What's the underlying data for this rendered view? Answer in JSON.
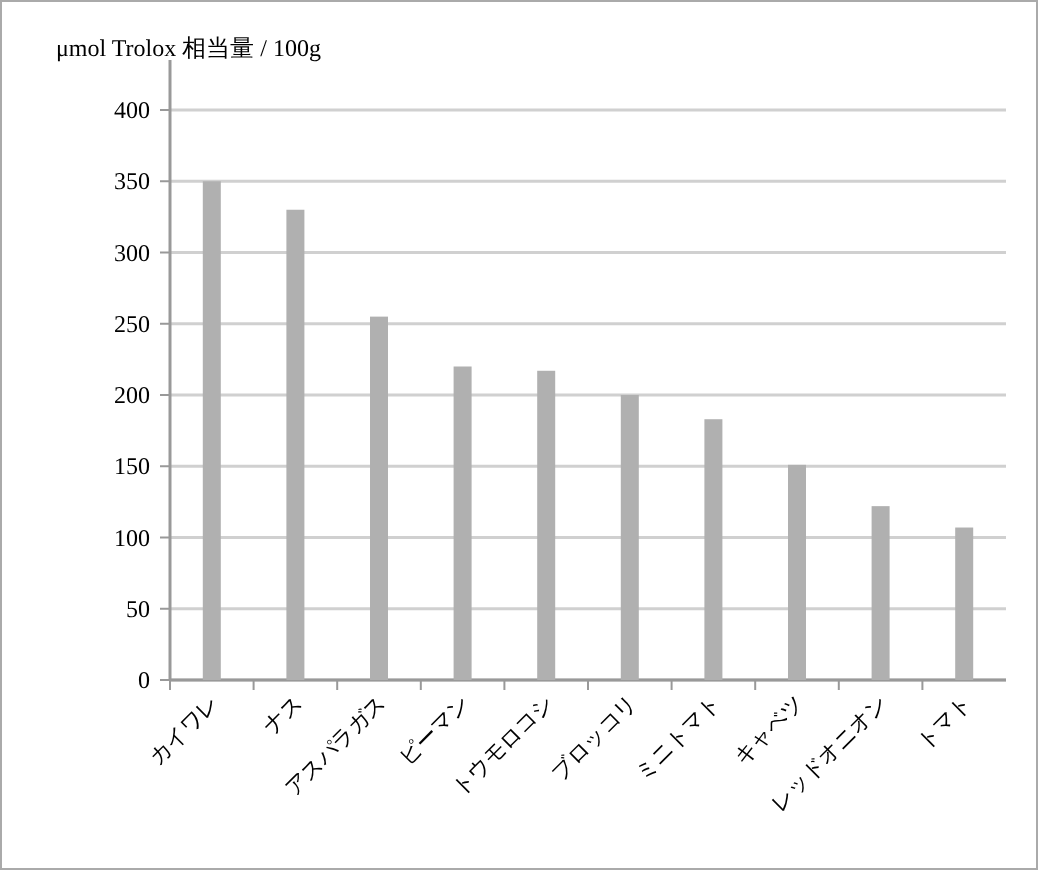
{
  "chart_data": {
    "type": "bar",
    "ylabel": "μmol Trolox 相当量 / 100g",
    "categories": [
      "カイワレ",
      "ナス",
      "アスパラガス",
      "ピーマン",
      "トウモロコシ",
      "ブロッコリ",
      "ミニトマト",
      "キャベツ",
      "レッドオニオン",
      "トマト"
    ],
    "values": [
      350,
      330,
      255,
      220,
      217,
      200,
      183,
      151,
      122,
      107
    ],
    "color": "#b0b0b0",
    "ylim": [
      0,
      400
    ],
    "yticks": [
      0,
      50,
      100,
      150,
      200,
      250,
      300,
      350,
      400
    ],
    "grid": "y"
  }
}
